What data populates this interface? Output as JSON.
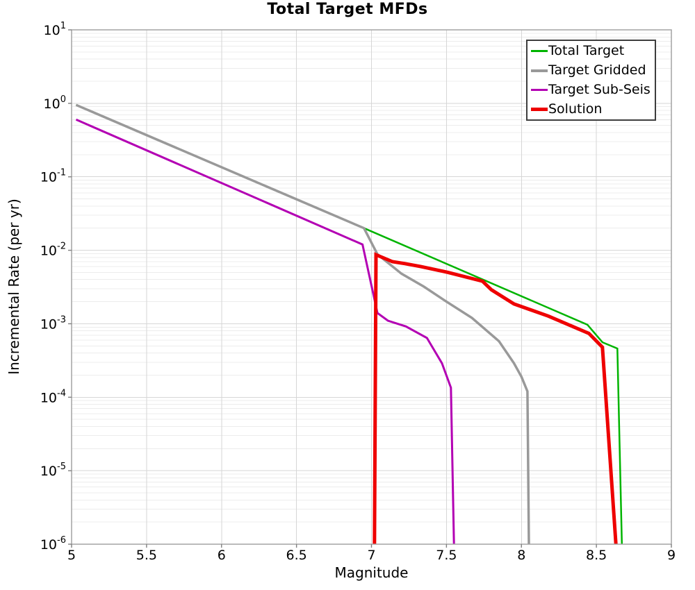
{
  "title": "Total Target MFDs",
  "axes": {
    "x": {
      "label": "Magnitude",
      "range": [
        5,
        9
      ],
      "tick_values": [
        5,
        5.5,
        6,
        6.5,
        7,
        7.5,
        8,
        8.5,
        9
      ],
      "tick_labels": [
        "5",
        "5.5",
        "6",
        "6.5",
        "7",
        "7.5",
        "8",
        "8.5",
        "9"
      ]
    },
    "y": {
      "label": "Incremental Rate (per yr)",
      "scale": "log",
      "range": [
        1e-06,
        10
      ],
      "tick_exponents": [
        1,
        0,
        -1,
        -2,
        -3,
        -4,
        -5,
        -6
      ]
    }
  },
  "legend": {
    "position": "top-right",
    "items": [
      {
        "label": "Total Target",
        "color": "#00b400",
        "thickness": 3
      },
      {
        "label": "Target Gridded",
        "color": "#999999",
        "thickness": 4
      },
      {
        "label": "Target Sub-Seis",
        "color": "#b300b3",
        "thickness": 3
      },
      {
        "label": "Solution",
        "color": "#ee0000",
        "thickness": 5
      }
    ]
  },
  "chart_data": {
    "type": "line",
    "title": "Total Target MFDs",
    "xlabel": "Magnitude",
    "ylabel": "Incremental Rate (per yr)",
    "x_range": [
      5,
      9
    ],
    "y_range": [
      1e-06,
      10
    ],
    "y_scale": "log",
    "grid": true,
    "legend_position": "top-right",
    "series": [
      {
        "name": "Total Target",
        "color": "#00b400",
        "width": 2.5,
        "points": [
          [
            5.03,
            0.95
          ],
          [
            6.95,
            0.02
          ],
          [
            8.44,
            0.00097
          ],
          [
            8.54,
            0.00056
          ],
          [
            8.64,
            0.00046
          ],
          [
            8.67,
            1e-06
          ]
        ]
      },
      {
        "name": "Target Gridded",
        "color": "#999999",
        "width": 3.5,
        "points": [
          [
            5.03,
            0.95
          ],
          [
            6.95,
            0.02
          ],
          [
            7.04,
            0.0088
          ],
          [
            7.2,
            0.0048
          ],
          [
            7.35,
            0.0032
          ],
          [
            7.5,
            0.002
          ],
          [
            7.67,
            0.0012
          ],
          [
            7.85,
            0.00058
          ],
          [
            7.95,
            0.00029
          ],
          [
            8.0,
            0.00019
          ],
          [
            8.04,
            0.00012
          ],
          [
            8.05,
            1e-06
          ]
        ]
      },
      {
        "name": "Target Sub-Seis",
        "color": "#b300b3",
        "width": 3,
        "points": [
          [
            5.03,
            0.6
          ],
          [
            6.94,
            0.012
          ],
          [
            7.0,
            0.0033
          ],
          [
            7.04,
            0.0014
          ],
          [
            7.11,
            0.0011
          ],
          [
            7.23,
            0.00092
          ],
          [
            7.37,
            0.00064
          ],
          [
            7.47,
            0.00029
          ],
          [
            7.53,
            0.000135
          ],
          [
            7.55,
            1e-06
          ]
        ]
      },
      {
        "name": "Solution",
        "color": "#ee0000",
        "width": 5,
        "points": [
          [
            7.02,
            1e-06
          ],
          [
            7.03,
            0.0087
          ],
          [
            7.14,
            0.007
          ],
          [
            7.22,
            0.0066
          ],
          [
            7.33,
            0.006
          ],
          [
            7.51,
            0.005
          ],
          [
            7.74,
            0.0038
          ],
          [
            7.8,
            0.0029
          ],
          [
            7.95,
            0.00186
          ],
          [
            8.18,
            0.00127
          ],
          [
            8.45,
            0.00074
          ],
          [
            8.54,
            0.00048
          ],
          [
            8.63,
            1e-06
          ]
        ]
      }
    ]
  }
}
